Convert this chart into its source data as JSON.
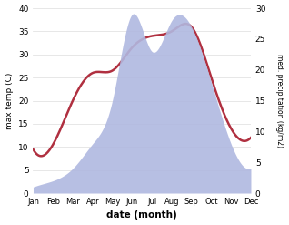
{
  "months": [
    "Jan",
    "Feb",
    "Mar",
    "Apr",
    "May",
    "Jun",
    "Jul",
    "Aug",
    "Sep",
    "Oct",
    "Nov",
    "Dec"
  ],
  "temperature": [
    9.5,
    10.5,
    20.0,
    26.0,
    26.5,
    31.5,
    34.0,
    35.0,
    36.0,
    25.0,
    14.0,
    12.0
  ],
  "precipitation": [
    1.0,
    2.0,
    4.0,
    8.0,
    15.0,
    29.0,
    23.0,
    28.0,
    27.0,
    18.0,
    8.0,
    4.0
  ],
  "temp_color": "#b03040",
  "precip_color": "#b0b8e0",
  "ylabel_left": "max temp (C)",
  "ylabel_right": "med. precipitation (kg/m2)",
  "xlabel": "date (month)",
  "ylim_left": [
    0,
    40
  ],
  "ylim_right": [
    0,
    30
  ],
  "background": "#ffffff"
}
